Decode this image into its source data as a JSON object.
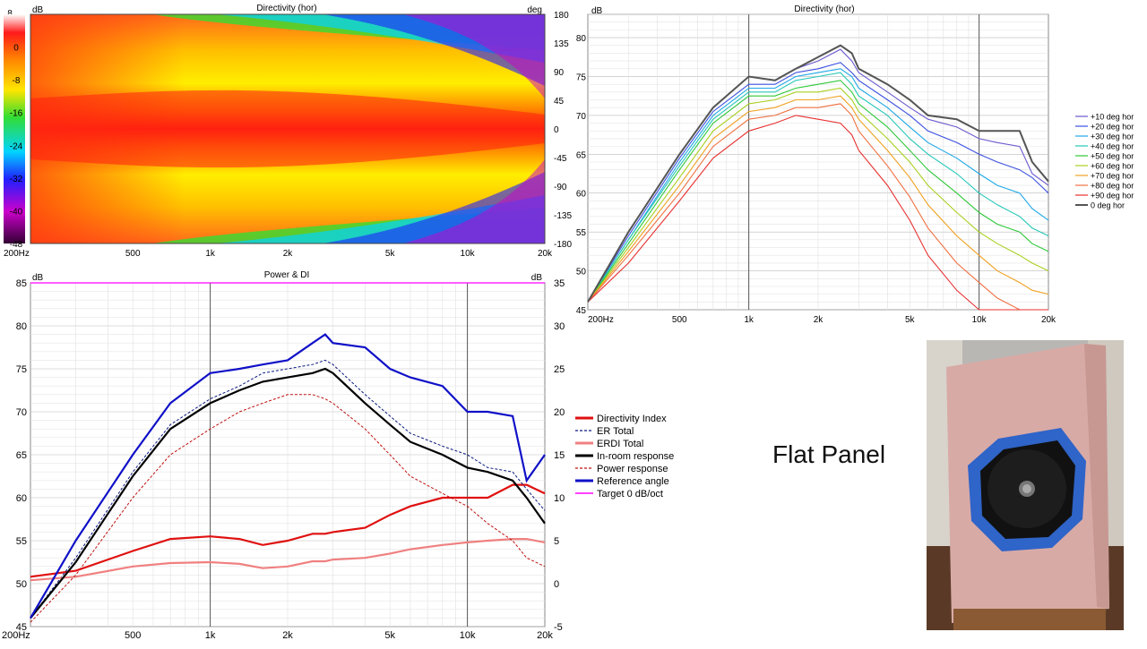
{
  "caption": "Flat Panel",
  "chart_data": [
    {
      "type": "heatmap",
      "title": "Directivity (hor)",
      "left_unit": "dB",
      "right_unit": "deg",
      "colorbar_ticks": [
        "8",
        "0",
        "-8",
        "-16",
        "-24",
        "-32",
        "-40",
        "-48"
      ],
      "angle_ticks": [
        "180",
        "135",
        "90",
        "45",
        "0",
        "-45",
        "-90",
        "-135",
        "-180"
      ],
      "x_ticks": [
        "200Hz",
        "500",
        "1k",
        "2k",
        "5k",
        "10k",
        "20k"
      ],
      "x_tick_values": [
        200,
        500,
        1000,
        2000,
        5000,
        10000,
        20000
      ],
      "xlim": [
        200,
        20000
      ],
      "x_scale": "log",
      "zlim": [
        -48,
        8
      ],
      "angle_range": [
        -180,
        180
      ]
    },
    {
      "type": "line",
      "title": "Directivity (hor)",
      "left_unit": "dB",
      "x_scale": "log",
      "xlim": [
        200,
        20000
      ],
      "ylim": [
        45,
        83
      ],
      "x_ticks": [
        "200Hz",
        "500",
        "1k",
        "2k",
        "5k",
        "10k",
        "20k"
      ],
      "x_tick_values": [
        200,
        500,
        1000,
        2000,
        5000,
        10000,
        20000
      ],
      "y_ticks": [
        "45",
        "50",
        "55",
        "60",
        "65",
        "70",
        "75",
        "80"
      ],
      "y_tick_values": [
        45,
        50,
        55,
        60,
        65,
        70,
        75,
        80
      ],
      "legend_position": "right",
      "x": [
        200,
        300,
        500,
        700,
        1000,
        1300,
        1600,
        2000,
        2500,
        2800,
        3000,
        4000,
        5000,
        6000,
        8000,
        10000,
        12000,
        15000,
        17000,
        20000
      ],
      "series": [
        {
          "name": "+10 deg hor",
          "color": "#6a5acd",
          "values": [
            46,
            55,
            65,
            71,
            75,
            74.5,
            76,
            77,
            78.5,
            77,
            75.5,
            73,
            71,
            69.5,
            68.5,
            67,
            66.5,
            66,
            62.5,
            61
          ]
        },
        {
          "name": "+20 deg hor",
          "color": "#3c50e0",
          "values": [
            46,
            54.5,
            64.5,
            70.5,
            74,
            74,
            75.5,
            76,
            76.8,
            75.5,
            74.5,
            72,
            70,
            68,
            66.5,
            65,
            64,
            63,
            62,
            60
          ]
        },
        {
          "name": "+30 deg hor",
          "color": "#1fa8e8",
          "values": [
            46,
            54,
            64,
            70,
            73.5,
            73.5,
            75,
            75.5,
            76,
            75,
            73.5,
            71,
            68.5,
            66.5,
            64.5,
            62.5,
            61,
            60,
            58,
            56.5
          ]
        },
        {
          "name": "+40 deg hor",
          "color": "#25c8b8",
          "values": [
            46,
            54,
            63.5,
            69.5,
            73,
            73,
            74.5,
            75,
            75.5,
            74,
            72.5,
            70,
            67,
            65,
            62.5,
            60,
            58.5,
            57,
            55.5,
            54.5
          ]
        },
        {
          "name": "+50 deg hor",
          "color": "#2ec83a",
          "values": [
            46,
            53.5,
            63,
            69,
            72.5,
            72.5,
            73.5,
            74,
            74.5,
            73,
            71.5,
            68.5,
            65.5,
            63,
            60,
            57.5,
            56,
            55,
            53.5,
            52.5
          ]
        },
        {
          "name": "+60 deg hor",
          "color": "#a8d020",
          "values": [
            46,
            53,
            62,
            68,
            71.5,
            72,
            73,
            73,
            73.5,
            72,
            70.5,
            67,
            64,
            61,
            57.5,
            55,
            53.5,
            52,
            51,
            50
          ]
        },
        {
          "name": "+70 deg hor",
          "color": "#f0a020",
          "values": [
            46,
            52.5,
            61,
            67,
            70.5,
            71,
            72,
            72,
            72.5,
            71,
            69.5,
            65.5,
            62,
            58.5,
            54.5,
            52,
            50,
            48.5,
            47.5,
            47
          ]
        },
        {
          "name": "+80 deg hor",
          "color": "#f07040",
          "values": [
            46,
            52,
            60,
            66,
            69.5,
            70,
            71,
            71,
            71.5,
            70,
            68,
            63.5,
            59.5,
            55.5,
            51,
            48.5,
            46.5,
            45,
            45,
            45
          ]
        },
        {
          "name": "+90 deg hor",
          "color": "#e83030",
          "values": [
            46,
            51,
            59,
            64.5,
            68,
            69,
            70,
            69.5,
            69,
            67.5,
            65.5,
            61,
            56.5,
            52,
            47.5,
            45,
            45,
            45,
            45,
            45
          ]
        },
        {
          "name": "0 deg hor",
          "color": "#555555",
          "values": [
            46,
            55,
            65,
            71,
            75,
            74.5,
            76,
            77.5,
            79,
            78,
            76,
            74,
            72,
            70,
            69.5,
            68,
            68,
            68,
            64,
            61.5
          ]
        }
      ]
    },
    {
      "type": "line",
      "title": "Power & DI",
      "left_unit": "dB",
      "right_unit": "dB",
      "x_scale": "log",
      "xlim": [
        200,
        20000
      ],
      "ylim": [
        45,
        85
      ],
      "y2lim": [
        -5,
        35
      ],
      "x_ticks": [
        "200Hz",
        "500",
        "1k",
        "2k",
        "5k",
        "10k",
        "20k"
      ],
      "x_tick_values": [
        200,
        500,
        1000,
        2000,
        5000,
        10000,
        20000
      ],
      "y_ticks": [
        "45",
        "50",
        "55",
        "60",
        "65",
        "70",
        "75",
        "80",
        "85"
      ],
      "y_tick_values": [
        45,
        50,
        55,
        60,
        65,
        70,
        75,
        80,
        85
      ],
      "y2_ticks": [
        "-5",
        "0",
        "5",
        "10",
        "15",
        "20",
        "25",
        "30",
        "35"
      ],
      "y2_tick_values": [
        -5,
        0,
        5,
        10,
        15,
        20,
        25,
        30,
        35
      ],
      "legend_position": "right",
      "x": [
        200,
        300,
        500,
        700,
        1000,
        1300,
        1600,
        2000,
        2500,
        2800,
        3000,
        4000,
        5000,
        6000,
        8000,
        10000,
        12000,
        15000,
        17000,
        20000
      ],
      "series": [
        {
          "name": "Directivity Index",
          "color": "#e01010",
          "style": "thick",
          "axis": "right",
          "values": [
            0.8,
            1.5,
            3.8,
            5.2,
            5.5,
            5.2,
            4.5,
            5,
            5.8,
            5.8,
            6,
            6.5,
            8,
            9,
            10,
            10,
            10,
            11.5,
            11.5,
            10.5
          ]
        },
        {
          "name": "ER Total",
          "color": "#0a1a80",
          "style": "dashed",
          "axis": "left",
          "values": [
            46,
            53,
            63,
            68.5,
            71.5,
            73,
            74.5,
            75,
            75.5,
            76,
            75.5,
            72,
            69.5,
            67.5,
            66,
            65,
            63.5,
            63,
            61,
            58.5
          ]
        },
        {
          "name": "ERDI Total",
          "color": "#f08080",
          "style": "thick",
          "axis": "right",
          "values": [
            0.4,
            0.8,
            2,
            2.4,
            2.5,
            2.3,
            1.8,
            2,
            2.6,
            2.6,
            2.8,
            3,
            3.5,
            4,
            4.5,
            4.8,
            5,
            5.2,
            5.2,
            4.8
          ]
        },
        {
          "name": "In-room response",
          "color": "#000000",
          "style": "thick",
          "axis": "left",
          "values": [
            46,
            52.5,
            62.5,
            68,
            71,
            72.5,
            73.5,
            74,
            74.5,
            75,
            74.5,
            71,
            68.5,
            66.5,
            65,
            63.5,
            63,
            62,
            60,
            57
          ]
        },
        {
          "name": "Power response",
          "color": "#c01010",
          "style": "dashed",
          "axis": "left",
          "values": [
            45.5,
            51,
            60,
            65,
            68,
            70,
            71,
            72,
            72,
            71.5,
            71,
            68,
            65,
            62.5,
            60.5,
            59,
            57,
            55,
            53,
            52
          ]
        },
        {
          "name": "Reference angle",
          "color": "#1010c8",
          "style": "thick",
          "axis": "left",
          "values": [
            46,
            55,
            65,
            71,
            74.5,
            75,
            75.5,
            76,
            78,
            79,
            78,
            77.5,
            75,
            74,
            73,
            70,
            70,
            69.5,
            62,
            65
          ]
        },
        {
          "name": "Target 0 dB/oct",
          "color": "#ff00ff",
          "style": "thin",
          "axis": "left",
          "values": [
            85,
            85,
            85,
            85,
            85,
            85,
            85,
            85,
            85,
            85,
            85,
            85,
            85,
            85,
            85,
            85,
            85,
            85,
            85,
            85
          ]
        }
      ]
    }
  ]
}
